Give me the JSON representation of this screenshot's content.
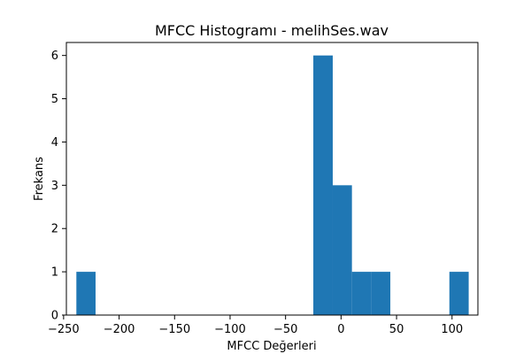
{
  "chart_data": {
    "type": "bar",
    "title": "MFCC Histogramı - melihSes.wav",
    "xlabel": "MFCC Değerleri",
    "ylabel": "Frekans",
    "xlim": [
      -247.5,
      123.3
    ],
    "ylim": [
      0,
      6.3
    ],
    "grid": false,
    "legend": "none",
    "bar_color": "#1f77b4",
    "bins": [
      {
        "x0": -238.5,
        "x1": -221.2,
        "count": 1
      },
      {
        "x0": -221.2,
        "x1": -203.9,
        "count": 0
      },
      {
        "x0": -203.9,
        "x1": -186.6,
        "count": 0
      },
      {
        "x0": -186.6,
        "x1": -169.3,
        "count": 0
      },
      {
        "x0": -169.3,
        "x1": -152.0,
        "count": 0
      },
      {
        "x0": -152.0,
        "x1": -134.6,
        "count": 0
      },
      {
        "x0": -134.6,
        "x1": -117.3,
        "count": 0
      },
      {
        "x0": -117.3,
        "x1": -100.0,
        "count": 0
      },
      {
        "x0": -100.0,
        "x1": -82.7,
        "count": 0
      },
      {
        "x0": -82.7,
        "x1": -65.4,
        "count": 0
      },
      {
        "x0": -65.4,
        "x1": -48.1,
        "count": 0
      },
      {
        "x0": -48.1,
        "x1": -30.8,
        "count": 0
      },
      {
        "x0": -25.0,
        "x1": -7.5,
        "count": 6
      },
      {
        "x0": -7.5,
        "x1": 9.8,
        "count": 3
      },
      {
        "x0": 9.8,
        "x1": 27.1,
        "count": 1
      },
      {
        "x0": 27.1,
        "x1": 44.4,
        "count": 1
      },
      {
        "x0": 44.4,
        "x1": 61.7,
        "count": 0
      },
      {
        "x0": 61.7,
        "x1": 79.0,
        "count": 0
      },
      {
        "x0": 79.0,
        "x1": 96.3,
        "count": 0
      },
      {
        "x0": 97.6,
        "x1": 115.0,
        "count": 1
      }
    ],
    "x_ticks": [
      {
        "value": -250,
        "label": "−250"
      },
      {
        "value": -200,
        "label": "−200"
      },
      {
        "value": -150,
        "label": "−150"
      },
      {
        "value": -100,
        "label": "−100"
      },
      {
        "value": -50,
        "label": "−50"
      },
      {
        "value": 0,
        "label": "0"
      },
      {
        "value": 50,
        "label": "50"
      },
      {
        "value": 100,
        "label": "100"
      }
    ],
    "y_ticks": [
      {
        "value": 0,
        "label": "0"
      },
      {
        "value": 1,
        "label": "1"
      },
      {
        "value": 2,
        "label": "2"
      },
      {
        "value": 3,
        "label": "3"
      },
      {
        "value": 4,
        "label": "4"
      },
      {
        "value": 5,
        "label": "5"
      },
      {
        "value": 6,
        "label": "6"
      }
    ]
  }
}
